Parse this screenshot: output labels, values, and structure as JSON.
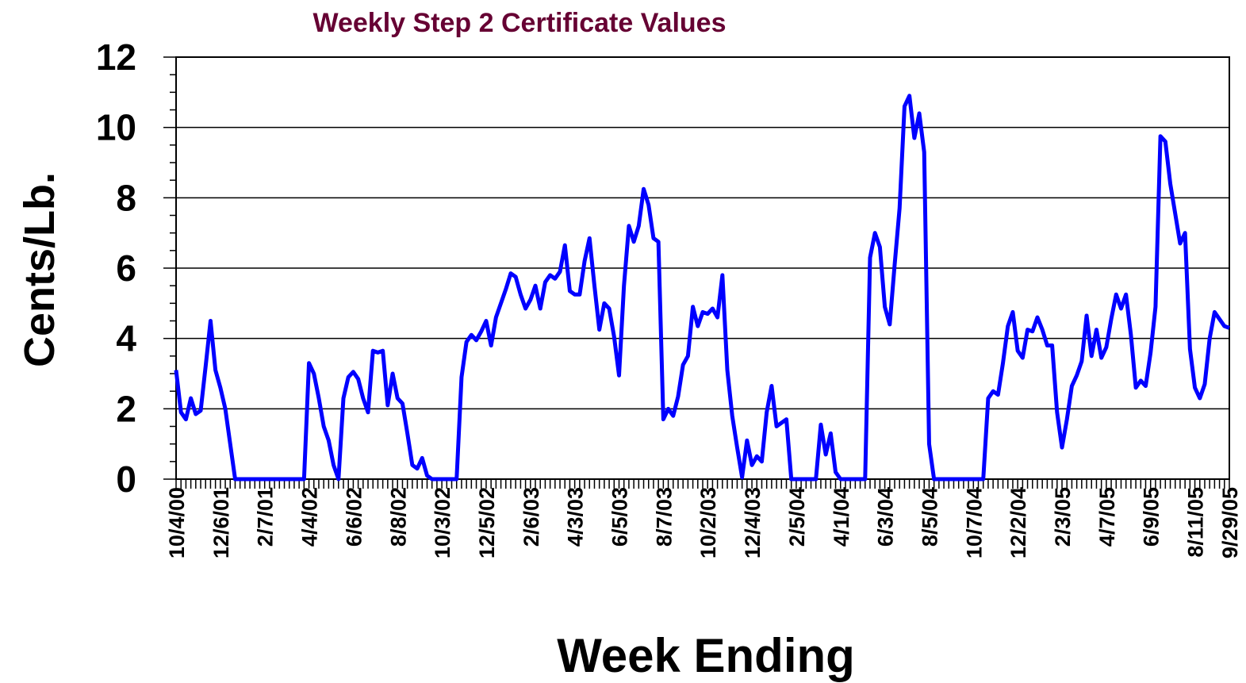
{
  "chart_data": {
    "type": "line",
    "title": "Weekly Step 2 Certificate Values",
    "xlabel": "Week Ending",
    "ylabel": "Cents/Lb.",
    "ylim": [
      0,
      12
    ],
    "yticks": [
      0,
      2,
      4,
      6,
      8,
      10,
      12
    ],
    "grid": true,
    "categories": [
      "10/4/00",
      null,
      null,
      null,
      null,
      null,
      null,
      null,
      null,
      "12/6/01",
      null,
      null,
      null,
      null,
      null,
      null,
      null,
      null,
      "2/7/01",
      null,
      null,
      null,
      null,
      null,
      null,
      null,
      null,
      "4/4/02",
      null,
      null,
      null,
      null,
      null,
      null,
      null,
      null,
      "6/6/02",
      null,
      null,
      null,
      null,
      null,
      null,
      null,
      null,
      "8/8/02",
      null,
      null,
      null,
      null,
      null,
      null,
      null,
      null,
      "10/3/02",
      null,
      null,
      null,
      null,
      null,
      null,
      null,
      null,
      "12/5/02",
      null,
      null,
      null,
      null,
      null,
      null,
      null,
      null,
      "2/6/03",
      null,
      null,
      null,
      null,
      null,
      null,
      null,
      null,
      "4/3/03",
      null,
      null,
      null,
      null,
      null,
      null,
      null,
      null,
      "6/5/03",
      null,
      null,
      null,
      null,
      null,
      null,
      null,
      null,
      "8/7/03",
      null,
      null,
      null,
      null,
      null,
      null,
      null,
      null,
      "10/2/03",
      null,
      null,
      null,
      null,
      null,
      null,
      null,
      null,
      "12/4/03",
      null,
      null,
      null,
      null,
      null,
      null,
      null,
      null,
      "2/5/04",
      null,
      null,
      null,
      null,
      null,
      null,
      null,
      null,
      "4/1/04",
      null,
      null,
      null,
      null,
      null,
      null,
      null,
      null,
      "6/3/04",
      null,
      null,
      null,
      null,
      null,
      null,
      null,
      null,
      "8/5/04",
      null,
      null,
      null,
      null,
      null,
      null,
      null,
      null,
      "10/7/04",
      null,
      null,
      null,
      null,
      null,
      null,
      null,
      null,
      "12/2/04",
      null,
      null,
      null,
      null,
      null,
      null,
      null,
      null,
      "2/3/05",
      null,
      null,
      null,
      null,
      null,
      null,
      null,
      null,
      "4/7/05",
      null,
      null,
      null,
      null,
      null,
      null,
      null,
      null,
      "6/9/05",
      null,
      null,
      null,
      null,
      null,
      null,
      null,
      null,
      "8/11/05",
      null,
      null,
      null,
      null,
      null,
      null,
      "9/29/05"
    ],
    "series": [
      {
        "name": "Step 2 Certificate Value",
        "color": "#0000ff",
        "values": [
          3.1,
          1.9,
          1.7,
          2.3,
          1.85,
          1.95,
          3.2,
          4.5,
          3.1,
          2.6,
          2.0,
          1.0,
          0,
          0,
          0,
          0,
          0,
          0,
          0,
          0,
          0,
          0,
          0,
          0,
          0,
          0,
          0,
          3.3,
          3.0,
          2.3,
          1.5,
          1.1,
          0.4,
          0,
          2.3,
          2.9,
          3.05,
          2.85,
          2.3,
          1.9,
          3.65,
          3.6,
          3.65,
          2.1,
          3.0,
          2.3,
          2.15,
          1.3,
          0.4,
          0.3,
          0.6,
          0.1,
          0,
          0,
          0,
          0,
          0,
          0,
          2.9,
          3.9,
          4.1,
          3.95,
          4.2,
          4.5,
          3.8,
          4.6,
          5.0,
          5.4,
          5.85,
          5.75,
          5.25,
          4.85,
          5.1,
          5.5,
          4.85,
          5.6,
          5.8,
          5.7,
          5.9,
          6.65,
          5.35,
          5.25,
          5.25,
          6.2,
          6.85,
          5.5,
          4.25,
          5.0,
          4.85,
          4.05,
          2.95,
          5.5,
          7.2,
          6.75,
          7.2,
          8.25,
          7.8,
          6.85,
          6.75,
          1.7,
          2.0,
          1.8,
          2.35,
          3.25,
          3.5,
          4.9,
          4.35,
          4.75,
          4.7,
          4.85,
          4.6,
          5.8,
          3.1,
          1.8,
          0.9,
          0.05,
          1.1,
          0.4,
          0.65,
          0.5,
          1.9,
          2.65,
          1.5,
          1.6,
          1.7,
          0,
          0,
          0,
          0,
          0,
          0,
          1.55,
          0.7,
          1.3,
          0.2,
          0,
          0,
          0,
          0,
          0,
          0,
          6.3,
          7.0,
          6.6,
          4.9,
          4.4,
          6.1,
          7.7,
          10.6,
          10.9,
          9.7,
          10.4,
          9.3,
          1.0,
          0,
          0,
          0,
          0,
          0,
          0,
          0,
          0,
          0,
          0,
          0,
          2.3,
          2.5,
          2.4,
          3.3,
          4.35,
          4.75,
          3.65,
          3.45,
          4.25,
          4.2,
          4.6,
          4.25,
          3.8,
          3.8,
          1.9,
          0.9,
          1.7,
          2.65,
          2.95,
          3.35,
          4.65,
          3.5,
          4.25,
          3.45,
          3.75,
          4.55,
          5.25,
          4.85,
          5.25,
          4.1,
          2.6,
          2.8,
          2.65,
          3.6,
          4.9,
          9.75,
          9.6,
          8.4,
          7.55,
          6.7,
          7.0,
          3.7,
          2.6,
          2.3,
          2.7,
          4.0,
          4.75,
          4.55,
          4.35,
          4.3
        ]
      }
    ]
  }
}
